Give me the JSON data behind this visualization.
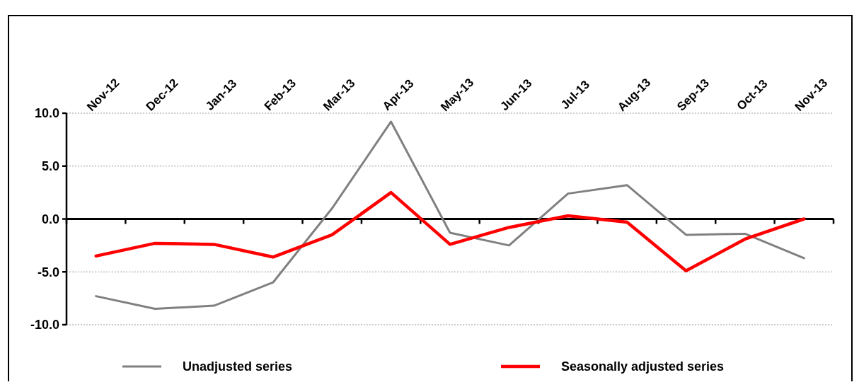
{
  "chart_data": {
    "type": "line",
    "categories": [
      "Nov-12",
      "Dec-12",
      "Jan-13",
      "Feb-13",
      "Mar-13",
      "Apr-13",
      "May-13",
      "Jun-13",
      "Jul-13",
      "Aug-13",
      "Sep-13",
      "Oct-13",
      "Nov-13"
    ],
    "series": [
      {
        "name": "Unadjusted series",
        "color": "#808080",
        "values": [
          -7.3,
          -8.5,
          -8.2,
          -6.0,
          1.0,
          9.2,
          -1.3,
          -2.5,
          2.4,
          3.2,
          -1.5,
          -1.4,
          -3.7
        ]
      },
      {
        "name": "Seasonally adjusted series",
        "color": "#ff0000",
        "values": [
          -3.5,
          -2.3,
          -2.4,
          -3.6,
          -1.5,
          2.5,
          -2.4,
          -0.8,
          0.3,
          -0.3,
          -4.9,
          -1.9,
          0.0
        ]
      }
    ],
    "ylim": [
      -10,
      10
    ],
    "yticks": [
      {
        "value": -10,
        "label": "-10.0"
      },
      {
        "value": -5,
        "label": "-5.0"
      },
      {
        "value": 0,
        "label": "0.0"
      },
      {
        "value": 5,
        "label": "5.0"
      },
      {
        "value": 10,
        "label": "10.0"
      }
    ],
    "grid": "y",
    "legend": "bottom",
    "marker": "none",
    "line_style": "solid"
  }
}
